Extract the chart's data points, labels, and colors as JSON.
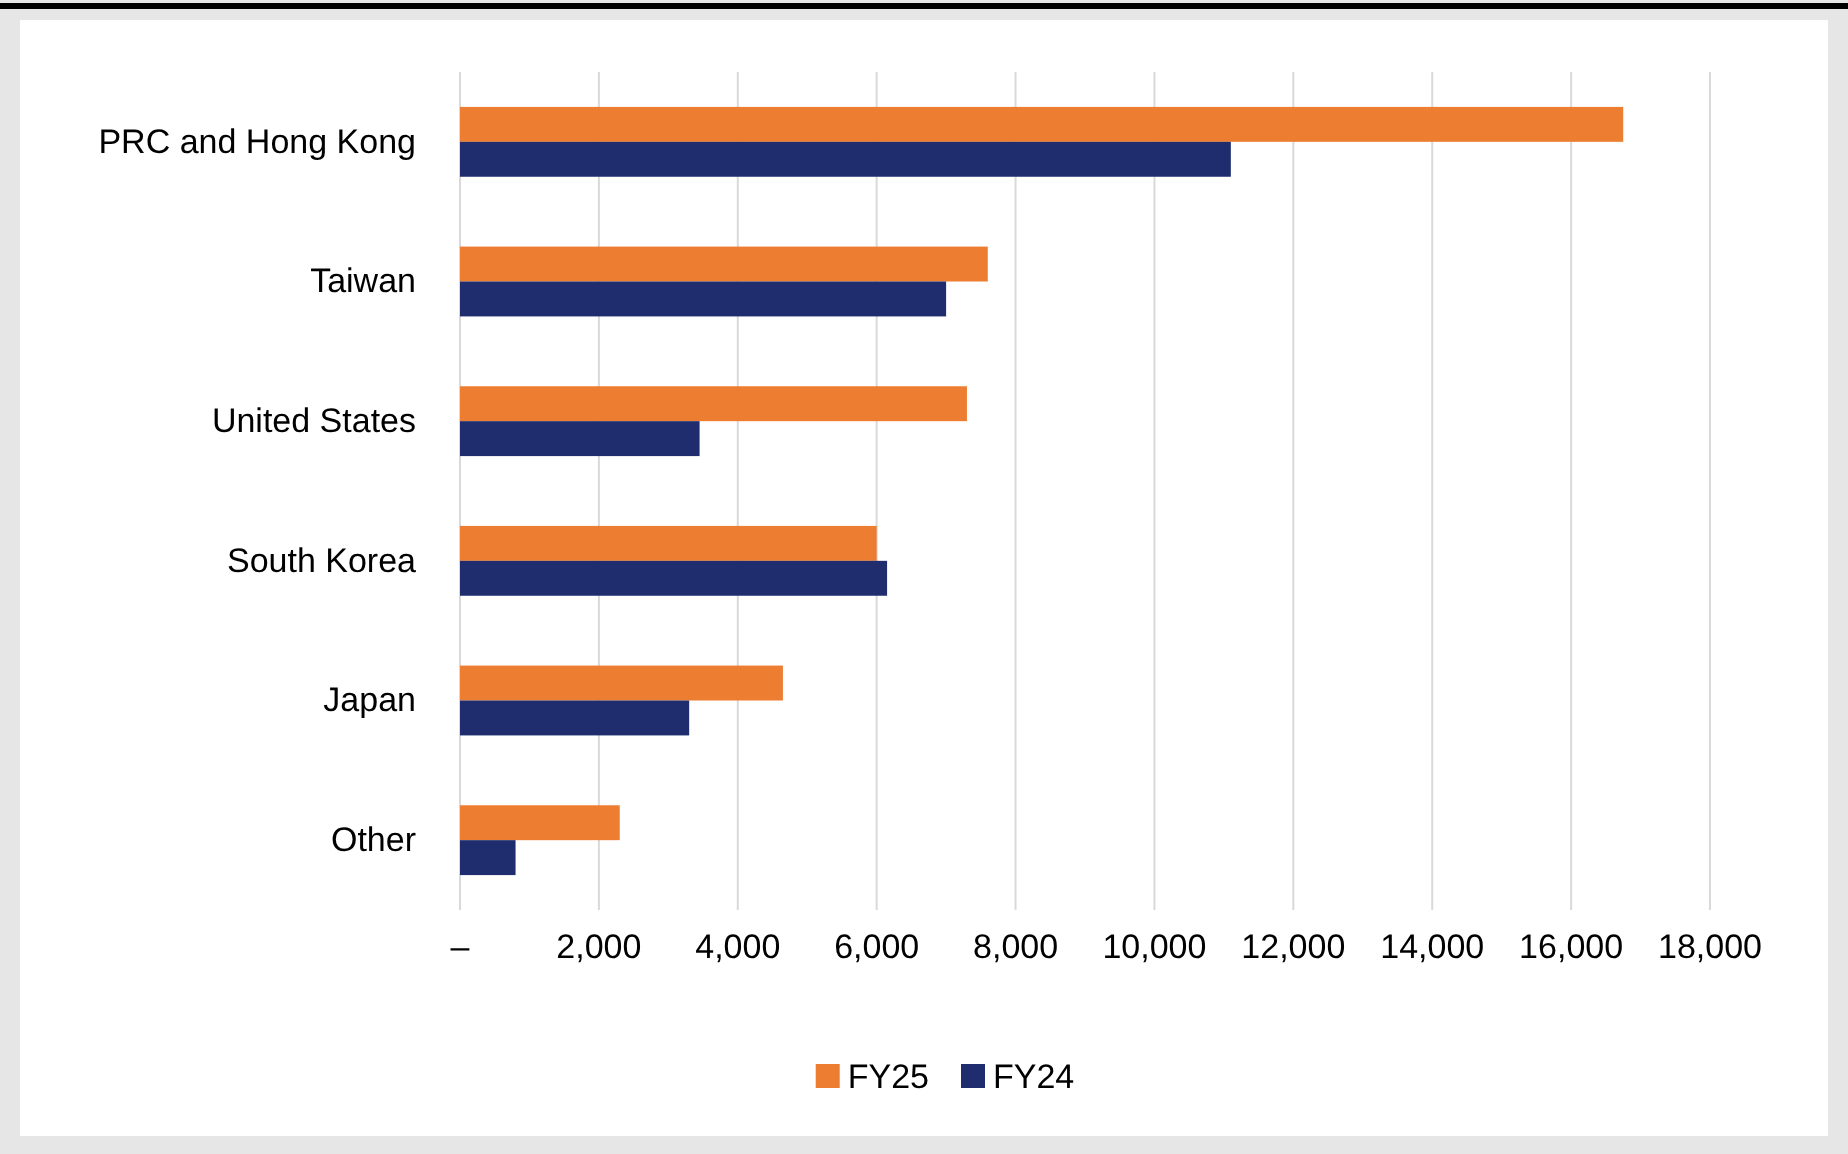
{
  "chart_data": {
    "type": "bar",
    "orientation": "horizontal",
    "categories": [
      "PRC and Hong Kong",
      "Taiwan",
      "United States",
      "South Korea",
      "Japan",
      "Other"
    ],
    "series": [
      {
        "name": "FY25",
        "color": "#ed7d31",
        "values": [
          16750,
          7600,
          7300,
          6000,
          4650,
          2300
        ]
      },
      {
        "name": "FY24",
        "color": "#1f2d6e",
        "values": [
          11100,
          7000,
          3450,
          6150,
          3300,
          800
        ]
      }
    ],
    "xlim": [
      0,
      18000
    ],
    "xticks": [
      {
        "value": 0,
        "label": "–"
      },
      {
        "value": 2000,
        "label": "2,000"
      },
      {
        "value": 4000,
        "label": "4,000"
      },
      {
        "value": 6000,
        "label": "6,000"
      },
      {
        "value": 8000,
        "label": "8,000"
      },
      {
        "value": 10000,
        "label": "10,000"
      },
      {
        "value": 12000,
        "label": "12,000"
      },
      {
        "value": 14000,
        "label": "14,000"
      },
      {
        "value": 16000,
        "label": "16,000"
      },
      {
        "value": 18000,
        "label": "18,000"
      }
    ],
    "grid": "x",
    "legend": "bottom"
  }
}
